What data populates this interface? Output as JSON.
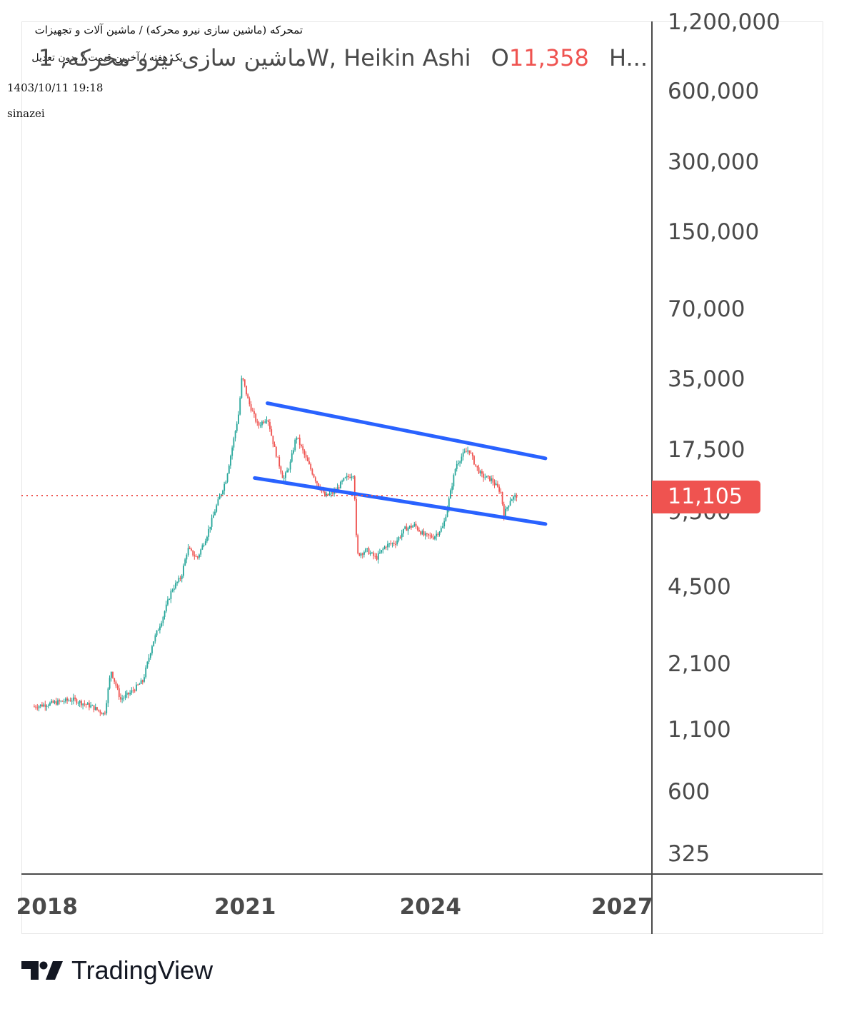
{
  "header": {
    "line1": "تمحرکه (ماشین سازی نیرو محرکه) / ماشین آلات و تجهیزات",
    "line2": "یک هفته / آخرین قیمت / بدون تعدیل",
    "timestamp": "1403/10/11 19:18",
    "author": "sinazei"
  },
  "legend": {
    "symbol_text": "ماشین سازی نیرو محرکه, 1W, Heikin Ashi",
    "open_label": "O",
    "open_value": "11,358",
    "high_label": "H..."
  },
  "price_badge": "11,105",
  "brand": "TradingView",
  "colors": {
    "up": "#26a69a",
    "down": "#ef5350",
    "channel": "#2962ff",
    "last_price_line": "#ef5350",
    "axis": "#4a4a4a"
  },
  "chart_data": {
    "type": "candlestick",
    "style": "Heikin Ashi",
    "interval": "1W",
    "y_scale": "log",
    "y_ticks": [
      "1,200,000",
      "600,000",
      "300,000",
      "150,000",
      "70,000",
      "35,000",
      "17,500",
      "9,500",
      "4,500",
      "2,100",
      "1,100",
      "600",
      "325"
    ],
    "x_ticks": [
      "2018",
      "2021",
      "2024",
      "2027"
    ],
    "last_price": 11105,
    "series": [
      {
        "name": "price",
        "points": [
          [
            2018.0,
            1400
          ],
          [
            2018.3,
            1450
          ],
          [
            2018.6,
            1500
          ],
          [
            2018.9,
            1400
          ],
          [
            2019.1,
            1300
          ],
          [
            2019.2,
            2000
          ],
          [
            2019.35,
            1500
          ],
          [
            2019.5,
            1600
          ],
          [
            2019.7,
            1800
          ],
          [
            2019.85,
            2600
          ],
          [
            2020.0,
            3300
          ],
          [
            2020.15,
            4400
          ],
          [
            2020.3,
            5000
          ],
          [
            2020.4,
            6600
          ],
          [
            2020.55,
            6000
          ],
          [
            2020.7,
            7500
          ],
          [
            2020.85,
            10000
          ],
          [
            2021.0,
            13000
          ],
          [
            2021.1,
            18000
          ],
          [
            2021.2,
            25000
          ],
          [
            2021.25,
            36000
          ],
          [
            2021.35,
            28000
          ],
          [
            2021.5,
            22000
          ],
          [
            2021.65,
            24000
          ],
          [
            2021.75,
            18000
          ],
          [
            2021.9,
            13000
          ],
          [
            2022.0,
            15000
          ],
          [
            2022.1,
            20000
          ],
          [
            2022.25,
            16000
          ],
          [
            2022.4,
            13000
          ],
          [
            2022.55,
            11000
          ],
          [
            2022.7,
            11500
          ],
          [
            2022.85,
            13000
          ],
          [
            2023.0,
            13800
          ],
          [
            2023.05,
            6200
          ],
          [
            2023.2,
            6500
          ],
          [
            2023.35,
            6000
          ],
          [
            2023.5,
            6800
          ],
          [
            2023.65,
            7000
          ],
          [
            2023.8,
            8000
          ],
          [
            2023.95,
            8300
          ],
          [
            2024.1,
            7500
          ],
          [
            2024.25,
            7400
          ],
          [
            2024.4,
            8200
          ],
          [
            2024.5,
            11000
          ],
          [
            2024.6,
            15000
          ],
          [
            2024.7,
            16500
          ],
          [
            2024.8,
            17500
          ],
          [
            2024.9,
            15000
          ],
          [
            2025.0,
            13500
          ],
          [
            2025.15,
            13000
          ],
          [
            2025.3,
            11500
          ],
          [
            2025.35,
            9200
          ],
          [
            2025.45,
            10700
          ],
          [
            2025.55,
            11105
          ]
        ]
      }
    ],
    "annotations": [
      {
        "type": "trendline",
        "label": "channel-top",
        "points": [
          [
            2021.65,
            27500
          ],
          [
            2026.0,
            16000
          ]
        ]
      },
      {
        "type": "trendline",
        "label": "channel-bottom",
        "points": [
          [
            2021.45,
            13200
          ],
          [
            2026.0,
            8400
          ]
        ]
      }
    ]
  }
}
